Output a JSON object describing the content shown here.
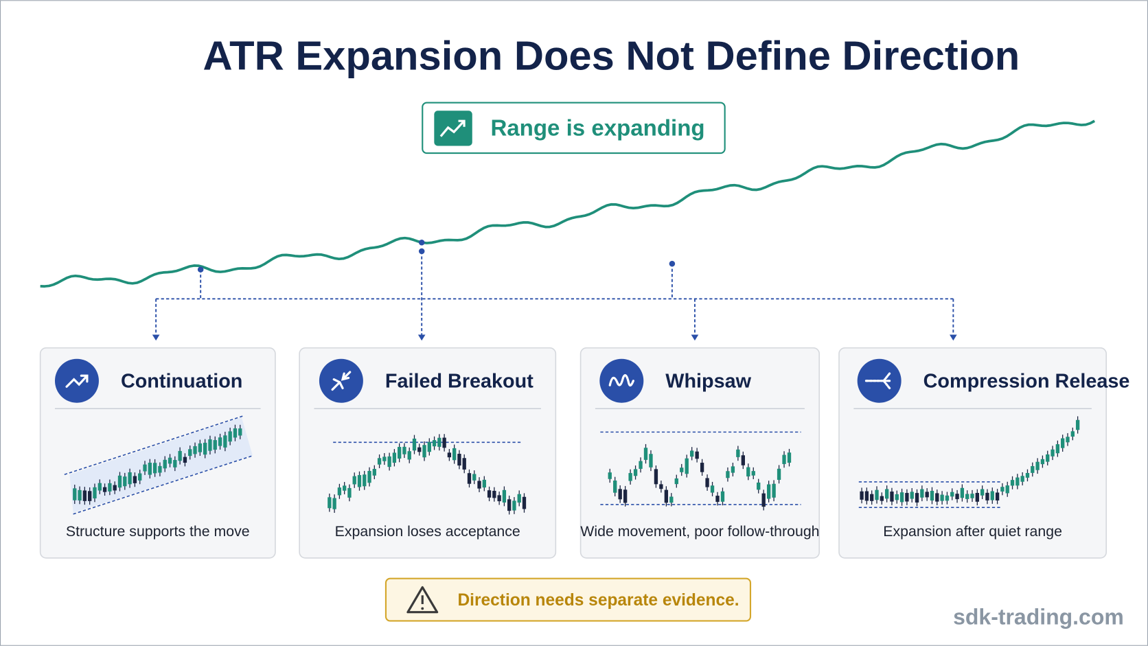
{
  "title": "ATR Expansion Does Not Define Direction",
  "badge": "Range is expanding",
  "cards": [
    {
      "title": "Continuation",
      "caption": "Structure supports the move"
    },
    {
      "title": "Failed Breakout",
      "caption": "Expansion loses acceptance"
    },
    {
      "title": "Whipsaw",
      "caption": "Wide movement, poor follow-through"
    },
    {
      "title": "Compression Release",
      "caption": "Expansion after quiet range"
    }
  ],
  "warning": "Direction needs separate evidence.",
  "watermark": "sdk-trading.com"
}
